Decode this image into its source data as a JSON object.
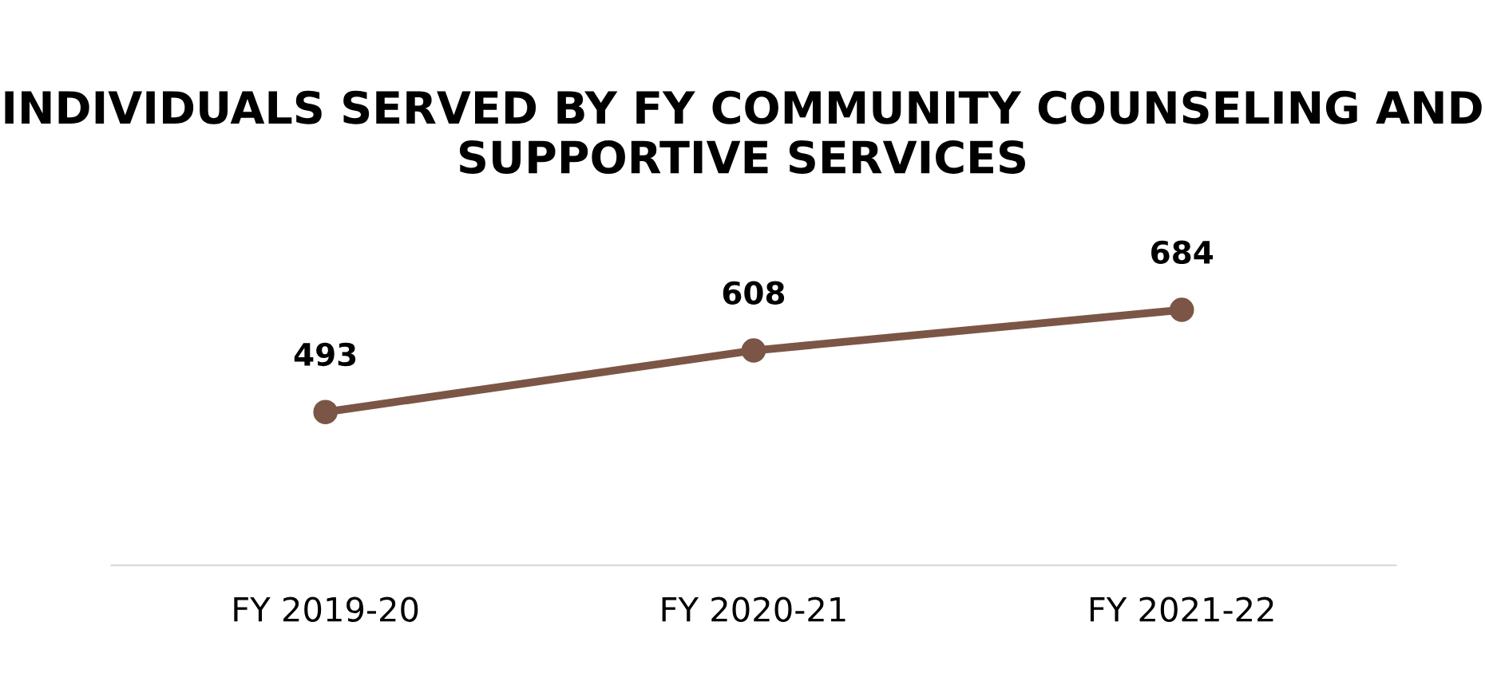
{
  "chart_data": {
    "type": "line",
    "title": "INDIVIDUALS SERVED BY FY COMMUNITY COUNSELING AND SUPPORTIVE SERVICES",
    "categories": [
      "FY 2019-20",
      "FY 2020-21",
      "FY 2021-22"
    ],
    "series": [
      {
        "color": "#7b5646",
        "values": [
          493,
          608,
          684
        ]
      }
    ],
    "data_labels": true,
    "marker": "circle",
    "line_style": "solid",
    "grid": false,
    "legend": false
  }
}
